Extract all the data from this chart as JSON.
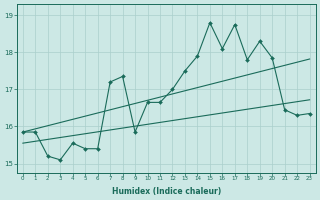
{
  "xlabel": "Humidex (Indice chaleur)",
  "xlim": [
    -0.5,
    23.5
  ],
  "ylim": [
    14.75,
    19.3
  ],
  "yticks": [
    15,
    16,
    17,
    18,
    19
  ],
  "xticks": [
    0,
    1,
    2,
    3,
    4,
    5,
    6,
    7,
    8,
    9,
    10,
    11,
    12,
    13,
    14,
    15,
    16,
    17,
    18,
    19,
    20,
    21,
    22,
    23
  ],
  "bg_color": "#cce8e5",
  "grid_color": "#aacfcc",
  "line_color": "#1a6b5a",
  "line1_x": [
    0,
    1,
    2,
    3,
    4,
    5,
    6,
    7,
    8,
    9,
    10,
    11,
    12,
    13,
    14,
    15,
    16,
    17,
    18,
    19,
    20,
    21,
    22,
    23
  ],
  "line1_y": [
    15.85,
    15.85,
    15.2,
    15.1,
    15.55,
    15.4,
    15.4,
    17.2,
    17.35,
    15.85,
    16.65,
    16.65,
    17.0,
    17.5,
    17.9,
    18.8,
    18.1,
    18.75,
    17.8,
    18.3,
    17.85,
    16.45,
    16.3,
    16.35
  ],
  "line2_x": [
    0,
    23
  ],
  "line2_y": [
    15.85,
    17.82
  ],
  "line3_x": [
    0,
    23
  ],
  "line3_y": [
    15.55,
    16.72
  ]
}
